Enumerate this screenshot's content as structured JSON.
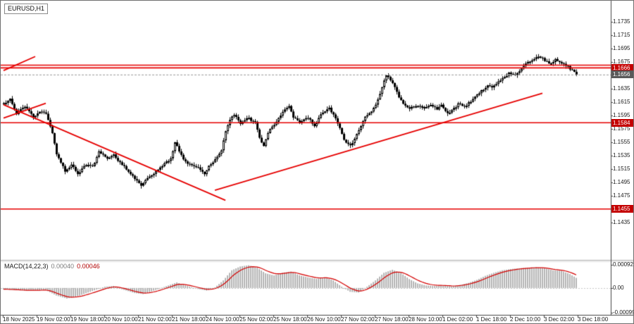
{
  "symbol_label": "EURUSD,H1",
  "indicator_label": {
    "name": "MACD(14,22,3)",
    "main": "0.00040",
    "signal": "0.00046"
  },
  "colors": {
    "background": "#ffffff",
    "candle": "#000000",
    "level_line": "#e60000",
    "trend_line": "#e60000",
    "badge_red": "#c40000",
    "badge_dark": "#5a5a5a",
    "macd_bar": "#b4b4b4",
    "macd_signal": "#d40000",
    "current_price_line": "#999999",
    "axis_text": "#1a1a1a"
  },
  "price_axis": {
    "ticks": [
      "1.1735",
      "1.1715",
      "1.1695",
      "1.1675",
      "1.1635",
      "1.1615",
      "1.1595",
      "1.1575",
      "1.1555",
      "1.1535",
      "1.1515",
      "1.1495",
      "1.1475",
      "1.1435"
    ],
    "badges": [
      {
        "label": "1.1666",
        "value": 1.1666,
        "type": "red"
      },
      {
        "label": "1.1656",
        "value": 1.1656,
        "type": "dark"
      },
      {
        "label": "1.1584",
        "value": 1.1584,
        "type": "red"
      },
      {
        "label": "1.1455",
        "value": 1.1455,
        "type": "red"
      }
    ]
  },
  "macd_axis": {
    "ticks": [
      {
        "label": "0.00092",
        "value": 0.00092
      },
      {
        "label": "0.00",
        "value": 0
      },
      {
        "label": "-0.00099",
        "value": -0.00099
      }
    ]
  },
  "time_axis": {
    "labels": [
      "18 Nov 2025",
      "19 Nov 02:00",
      "19 Nov 18:00",
      "20 Nov 10:00",
      "21 Nov 02:00",
      "21 Nov 18:00",
      "24 Nov 10:00",
      "25 Nov 02:00",
      "25 Nov 18:00",
      "26 Nov 10:00",
      "27 Nov 02:00",
      "27 Nov 18:00",
      "28 Nov 10:00",
      "1 Dec 02:00",
      "1 Dec 18:00",
      "2 Dec 10:00",
      "3 Dec 02:00",
      "3 Dec 18:00"
    ]
  },
  "chart_data": [
    {
      "type": "candlestick",
      "symbol": "EURUSD",
      "timeframe": "H1",
      "bars": 272,
      "ylim": [
        1.1381,
        1.1758
      ],
      "current_price": 1.1656,
      "price_path": [
        [
          0,
          1.1612
        ],
        [
          3,
          1.1619
        ],
        [
          6,
          1.1598
        ],
        [
          10,
          1.1608
        ],
        [
          14,
          1.1592
        ],
        [
          17,
          1.1601
        ],
        [
          20,
          1.1597
        ],
        [
          23,
          1.1568
        ],
        [
          25,
          1.1538
        ],
        [
          29,
          1.1512
        ],
        [
          32,
          1.1521
        ],
        [
          35,
          1.1508
        ],
        [
          39,
          1.1522
        ],
        [
          42,
          1.1518
        ],
        [
          45,
          1.154
        ],
        [
          49,
          1.1531
        ],
        [
          52,
          1.1536
        ],
        [
          55,
          1.1524
        ],
        [
          59,
          1.1512
        ],
        [
          62,
          1.15
        ],
        [
          65,
          1.1491
        ],
        [
          69,
          1.1503
        ],
        [
          72,
          1.1512
        ],
        [
          75,
          1.152
        ],
        [
          79,
          1.153
        ],
        [
          81,
          1.1554
        ],
        [
          83,
          1.1542
        ],
        [
          85,
          1.1528
        ],
        [
          89,
          1.152
        ],
        [
          92,
          1.1516
        ],
        [
          95,
          1.1506
        ],
        [
          97,
          1.152
        ],
        [
          100,
          1.1528
        ],
        [
          103,
          1.1544
        ],
        [
          105,
          1.1572
        ],
        [
          107,
          1.1589
        ],
        [
          109,
          1.1596
        ],
        [
          112,
          1.1582
        ],
        [
          115,
          1.1592
        ],
        [
          119,
          1.1584
        ],
        [
          121,
          1.1562
        ],
        [
          123,
          1.1549
        ],
        [
          125,
          1.157
        ],
        [
          129,
          1.1586
        ],
        [
          132,
          1.16
        ],
        [
          135,
          1.1608
        ],
        [
          137,
          1.1592
        ],
        [
          140,
          1.1584
        ],
        [
          144,
          1.1592
        ],
        [
          147,
          1.1578
        ],
        [
          150,
          1.1598
        ],
        [
          154,
          1.1606
        ],
        [
          156,
          1.1596
        ],
        [
          159,
          1.1576
        ],
        [
          161,
          1.1558
        ],
        [
          164,
          1.1549
        ],
        [
          166,
          1.156
        ],
        [
          169,
          1.158
        ],
        [
          171,
          1.1592
        ],
        [
          174,
          1.16
        ],
        [
          177,
          1.1618
        ],
        [
          179,
          1.1638
        ],
        [
          181,
          1.1656
        ],
        [
          183,
          1.1648
        ],
        [
          185,
          1.1636
        ],
        [
          187,
          1.1622
        ],
        [
          189,
          1.1612
        ],
        [
          192,
          1.1606
        ],
        [
          195,
          1.161
        ],
        [
          199,
          1.1607
        ],
        [
          202,
          1.161
        ],
        [
          205,
          1.1605
        ],
        [
          207,
          1.1612
        ],
        [
          210,
          1.1598
        ],
        [
          213,
          1.1605
        ],
        [
          215,
          1.1612
        ],
        [
          218,
          1.1608
        ],
        [
          221,
          1.1616
        ],
        [
          223,
          1.1624
        ],
        [
          226,
          1.1632
        ],
        [
          229,
          1.164
        ],
        [
          231,
          1.1636
        ],
        [
          234,
          1.1646
        ],
        [
          237,
          1.1652
        ],
        [
          239,
          1.1658
        ],
        [
          242,
          1.1655
        ],
        [
          245,
          1.1664
        ],
        [
          247,
          1.1672
        ],
        [
          250,
          1.1678
        ],
        [
          253,
          1.1684
        ],
        [
          255,
          1.168
        ],
        [
          258,
          1.1672
        ],
        [
          261,
          1.1678
        ],
        [
          263,
          1.1674
        ],
        [
          266,
          1.167
        ],
        [
          269,
          1.1662
        ],
        [
          271,
          1.1656
        ]
      ],
      "levels": [
        {
          "price": 1.167,
          "badge": false
        },
        {
          "price": 1.1666,
          "badge": true
        },
        {
          "price": 1.1584,
          "badge": true
        },
        {
          "price": 1.1455,
          "badge": true
        }
      ],
      "trendlines": [
        {
          "from": [
            0,
            1.1611
          ],
          "to": [
            105,
            1.1468
          ]
        },
        {
          "from": [
            100,
            1.1483
          ],
          "to": [
            255,
            1.1628
          ]
        },
        {
          "from": [
            0,
            1.1662
          ],
          "to": [
            15,
            1.1683
          ]
        },
        {
          "from": [
            0,
            1.1591
          ],
          "to": [
            20,
            1.1613
          ]
        }
      ]
    },
    {
      "type": "macd",
      "params": [
        14,
        22,
        3
      ],
      "ylim": [
        -0.00098,
        0.001
      ],
      "values_end": {
        "macd": 0.0004,
        "signal": 0.00046
      },
      "anchors": [
        [
          0,
          -5e-05
        ],
        [
          10,
          -0.0001
        ],
        [
          20,
          -8e-05
        ],
        [
          25,
          -0.0003
        ],
        [
          30,
          -0.00042
        ],
        [
          36,
          -0.0003
        ],
        [
          42,
          -0.00012
        ],
        [
          48,
          5e-05
        ],
        [
          52,
          8e-05
        ],
        [
          56,
          -5e-05
        ],
        [
          62,
          -0.0002
        ],
        [
          66,
          -0.00024
        ],
        [
          72,
          -8e-05
        ],
        [
          78,
          0.0001
        ],
        [
          82,
          0.00022
        ],
        [
          86,
          0.0001
        ],
        [
          92,
          -4e-05
        ],
        [
          96,
          -0.0001
        ],
        [
          100,
          2e-05
        ],
        [
          104,
          0.0003
        ],
        [
          108,
          0.0007
        ],
        [
          112,
          0.00085
        ],
        [
          116,
          0.0009
        ],
        [
          120,
          0.0008
        ],
        [
          124,
          0.00058
        ],
        [
          128,
          0.0005
        ],
        [
          132,
          0.0006
        ],
        [
          136,
          0.00065
        ],
        [
          140,
          0.0005
        ],
        [
          144,
          0.00042
        ],
        [
          148,
          0.00036
        ],
        [
          152,
          0.00042
        ],
        [
          156,
          0.0003
        ],
        [
          160,
          5e-05
        ],
        [
          164,
          -0.00015
        ],
        [
          168,
          -0.00018
        ],
        [
          172,
          5e-05
        ],
        [
          176,
          0.0003
        ],
        [
          180,
          0.0006
        ],
        [
          184,
          0.00072
        ],
        [
          188,
          0.0006
        ],
        [
          192,
          0.00035
        ],
        [
          196,
          0.00018
        ],
        [
          200,
          0.0001
        ],
        [
          204,
          8e-05
        ],
        [
          208,
          0.0001
        ],
        [
          212,
          6e-05
        ],
        [
          216,
          0.00012
        ],
        [
          220,
          0.0002
        ],
        [
          224,
          0.00032
        ],
        [
          228,
          0.00048
        ],
        [
          232,
          0.0006
        ],
        [
          236,
          0.0007
        ],
        [
          240,
          0.00075
        ],
        [
          244,
          0.00078
        ],
        [
          248,
          0.0008
        ],
        [
          252,
          0.00082
        ],
        [
          256,
          0.00078
        ],
        [
          260,
          0.0007
        ],
        [
          264,
          0.00068
        ],
        [
          268,
          0.00055
        ],
        [
          271,
          0.0004
        ]
      ]
    }
  ]
}
